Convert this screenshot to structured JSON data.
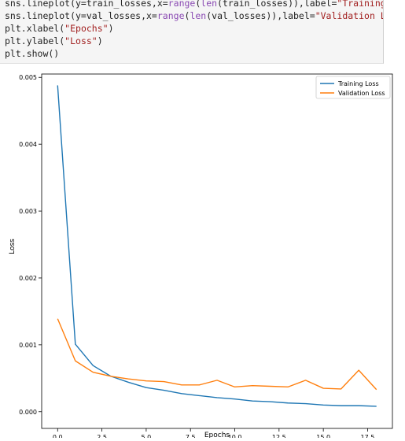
{
  "code_cell": {
    "lines": [
      [
        {
          "t": "sns.lineplot(y=train_losses,x="
        },
        {
          "t": "range",
          "c": "fn"
        },
        {
          "t": "("
        },
        {
          "t": "len",
          "c": "fn"
        },
        {
          "t": "(train_losses)),label="
        },
        {
          "t": "\"Training Loss\"",
          "c": "str"
        },
        {
          "t": ")"
        }
      ],
      [
        {
          "t": "sns.lineplot(y=val_losses,x="
        },
        {
          "t": "range",
          "c": "fn"
        },
        {
          "t": "("
        },
        {
          "t": "len",
          "c": "fn"
        },
        {
          "t": "(val_losses)),label="
        },
        {
          "t": "\"Validation Loss\"",
          "c": "str"
        },
        {
          "t": ")"
        }
      ],
      [
        {
          "t": "plt.xlabel("
        },
        {
          "t": "\"Epochs\"",
          "c": "str"
        },
        {
          "t": ")"
        }
      ],
      [
        {
          "t": "plt.ylabel("
        },
        {
          "t": "\"Loss\"",
          "c": "str"
        },
        {
          "t": ")"
        }
      ],
      [
        {
          "t": "plt.show()"
        }
      ]
    ]
  },
  "chart_data": {
    "type": "line",
    "title": "",
    "xlabel": "Epochs",
    "ylabel": "Loss",
    "xlim": [
      -0.9,
      18.9
    ],
    "ylim": [
      -0.00025,
      0.00505
    ],
    "x_ticks": [
      0.0,
      2.5,
      5.0,
      7.5,
      10.0,
      12.5,
      15.0,
      17.5
    ],
    "x_tick_labels": [
      "0.0",
      "2.5",
      "5.0",
      "7.5",
      "10.0",
      "12.5",
      "15.0",
      "17.5"
    ],
    "y_ticks": [
      0.0,
      0.001,
      0.002,
      0.003,
      0.004,
      0.005
    ],
    "y_tick_labels": [
      "0.000",
      "0.001",
      "0.002",
      "0.003",
      "0.004",
      "0.005"
    ],
    "grid": false,
    "legend": "top-right",
    "x": [
      0,
      1,
      2,
      3,
      4,
      5,
      6,
      7,
      8,
      9,
      10,
      11,
      12,
      13,
      14,
      15,
      16,
      17,
      18
    ],
    "series": [
      {
        "name": "Training Loss",
        "color": "#1f77b4",
        "values": [
          0.00488,
          0.00101,
          0.00069,
          0.00053,
          0.00044,
          0.00036,
          0.00032,
          0.00027,
          0.00024,
          0.00021,
          0.00019,
          0.00016,
          0.00015,
          0.00013,
          0.00012,
          0.0001,
          9e-05,
          9e-05,
          8e-05
        ]
      },
      {
        "name": "Validation Loss",
        "color": "#ff7f0e",
        "values": [
          0.00139,
          0.00076,
          0.00059,
          0.00053,
          0.00049,
          0.00046,
          0.00045,
          0.0004,
          0.0004,
          0.00047,
          0.00037,
          0.00039,
          0.00038,
          0.00037,
          0.00047,
          0.00035,
          0.00034,
          0.00062,
          0.00033
        ]
      }
    ]
  }
}
